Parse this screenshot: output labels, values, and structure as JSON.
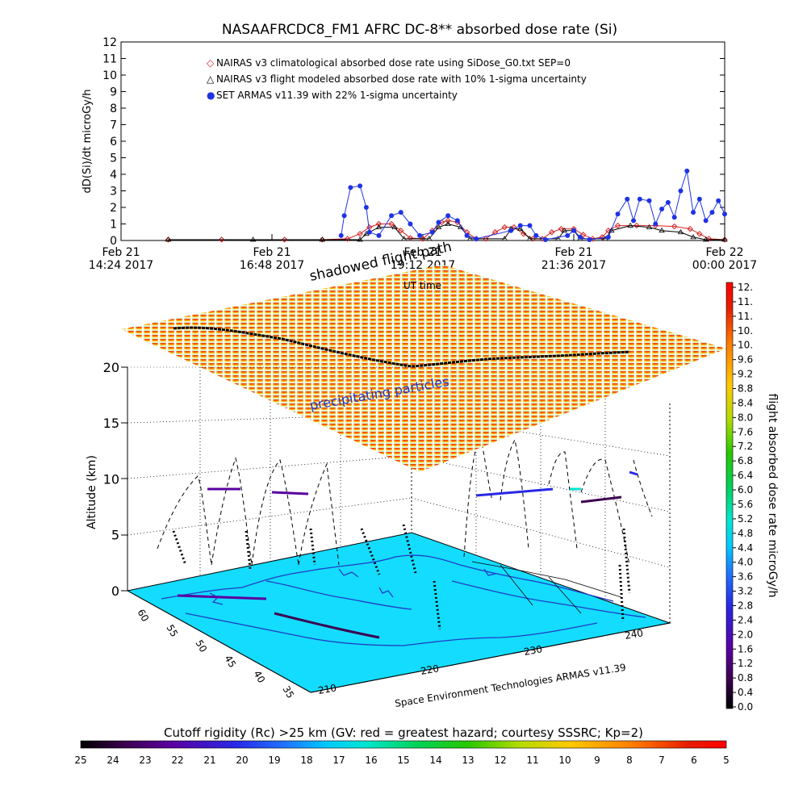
{
  "chart_data": [
    {
      "type": "line",
      "title": "NASAAFRCDC8_FM1 AFRC DC-8** absorbed dose rate (Si)",
      "ylabel": "dD(Si)/dt microGy/h",
      "xlabel": "UT time",
      "ylim": [
        0,
        12
      ],
      "y_ticks": [
        "0",
        "1",
        "2",
        "3",
        "4",
        "5",
        "6",
        "7",
        "8",
        "9",
        "10",
        "11",
        "12"
      ],
      "x_ticks": [
        {
          "line1": "Feb 21",
          "line2": "14:24 2017",
          "hour": 14.4
        },
        {
          "line1": "Feb 21",
          "line2": "16:48 2017",
          "hour": 16.8
        },
        {
          "line1": "Feb 21",
          "line2": "19:12 2017",
          "hour": 19.2
        },
        {
          "line1": "Feb 21",
          "line2": "21:36 2017",
          "hour": 21.6
        },
        {
          "line1": "Feb 22",
          "line2": "00:00 2017",
          "hour": 24.0
        }
      ],
      "x_range_hours": [
        14.4,
        24.0
      ],
      "legend": [
        {
          "symbol": "◇",
          "color": "#d42020",
          "label": "NAIRAS v3 climatological absorbed dose rate using SiDose_G0.txt SEP=0"
        },
        {
          "symbol": "△",
          "color": "#000000",
          "label": "NAIRAS v3 flight modeled absorbed dose rate with 10% 1-sigma uncertainty"
        },
        {
          "symbol": "●",
          "color": "#1e32e6",
          "label": "SET ARMAS v11.39 with 22% 1-sigma uncertainty"
        }
      ],
      "series": [
        {
          "name": "NAIRAS v3 climatological absorbed dose rate using SiDose_G0.txt SEP=0",
          "color": "#d42020",
          "points": [
            [
              15.15,
              0.05
            ],
            [
              16.0,
              0.05
            ],
            [
              17.0,
              0.05
            ],
            [
              17.6,
              0.05
            ],
            [
              18.0,
              0.1
            ],
            [
              18.2,
              0.4
            ],
            [
              18.35,
              0.8
            ],
            [
              18.5,
              1.0
            ],
            [
              18.7,
              1.0
            ],
            [
              18.85,
              0.6
            ],
            [
              19.0,
              0.15
            ],
            [
              19.2,
              0.1
            ],
            [
              19.35,
              0.6
            ],
            [
              19.5,
              1.1
            ],
            [
              19.6,
              1.2
            ],
            [
              19.75,
              1.1
            ],
            [
              19.9,
              0.5
            ],
            [
              20.05,
              0.1
            ],
            [
              20.2,
              0.1
            ],
            [
              20.35,
              0.5
            ],
            [
              20.5,
              0.8
            ],
            [
              20.65,
              0.8
            ],
            [
              20.8,
              0.4
            ],
            [
              20.95,
              0.1
            ],
            [
              21.1,
              0.1
            ],
            [
              21.25,
              0.5
            ],
            [
              21.4,
              0.7
            ],
            [
              21.6,
              0.7
            ],
            [
              21.75,
              0.35
            ],
            [
              21.9,
              0.1
            ],
            [
              22.05,
              0.2
            ],
            [
              22.15,
              0.6
            ],
            [
              22.3,
              0.9
            ],
            [
              22.6,
              0.9
            ],
            [
              22.9,
              0.9
            ],
            [
              23.2,
              0.85
            ],
            [
              23.45,
              0.7
            ],
            [
              23.6,
              0.4
            ],
            [
              23.75,
              0.1
            ],
            [
              24.0,
              0.05
            ]
          ]
        },
        {
          "name": "NAIRAS v3 flight modeled absorbed dose rate with 10% 1-sigma uncertainty",
          "color": "#000000",
          "points": [
            [
              15.15,
              0.05
            ],
            [
              16.5,
              0.05
            ],
            [
              17.6,
              0.05
            ],
            [
              18.2,
              0.05
            ],
            [
              18.3,
              0.4
            ],
            [
              18.5,
              0.8
            ],
            [
              18.75,
              0.8
            ],
            [
              18.9,
              0.1
            ],
            [
              19.3,
              0.1
            ],
            [
              19.45,
              0.8
            ],
            [
              19.6,
              1.0
            ],
            [
              19.8,
              0.8
            ],
            [
              19.95,
              0.1
            ],
            [
              20.5,
              0.1
            ],
            [
              20.6,
              0.7
            ],
            [
              20.75,
              0.7
            ],
            [
              20.9,
              0.1
            ],
            [
              21.35,
              0.1
            ],
            [
              21.45,
              0.6
            ],
            [
              21.6,
              0.6
            ],
            [
              21.7,
              0.1
            ],
            [
              22.1,
              0.1
            ],
            [
              22.2,
              0.6
            ],
            [
              22.5,
              0.9
            ],
            [
              22.8,
              0.8
            ],
            [
              23.0,
              0.6
            ],
            [
              23.3,
              0.5
            ],
            [
              23.5,
              0.2
            ],
            [
              23.7,
              0.05
            ],
            [
              24.0,
              0.05
            ]
          ]
        },
        {
          "name": "SET ARMAS v11.39 with 22% 1-sigma uncertainty",
          "color": "#1e32e6",
          "points": [
            [
              17.9,
              0.3
            ],
            [
              17.95,
              1.5
            ],
            [
              18.05,
              3.2
            ],
            [
              18.2,
              3.3
            ],
            [
              18.3,
              2.0
            ],
            [
              18.35,
              0.5
            ],
            [
              18.5,
              0.3
            ],
            [
              18.7,
              1.5
            ],
            [
              18.85,
              1.7
            ],
            [
              19.0,
              1.0
            ],
            [
              19.15,
              0.3
            ],
            [
              19.35,
              0.5
            ],
            [
              19.45,
              1.1
            ],
            [
              19.6,
              1.5
            ],
            [
              19.75,
              1.2
            ],
            [
              19.9,
              0.3
            ],
            [
              20.05,
              0.1
            ],
            [
              20.6,
              0.6
            ],
            [
              20.75,
              0.9
            ],
            [
              20.9,
              0.9
            ],
            [
              21.0,
              0.3
            ],
            [
              21.15,
              0.05
            ],
            [
              21.5,
              0.3
            ],
            [
              21.6,
              0.6
            ],
            [
              21.7,
              0.2
            ],
            [
              21.85,
              0.05
            ],
            [
              22.15,
              0.2
            ],
            [
              22.3,
              1.6
            ],
            [
              22.45,
              2.5
            ],
            [
              22.55,
              1.2
            ],
            [
              22.65,
              2.5
            ],
            [
              22.8,
              2.4
            ],
            [
              22.9,
              1.0
            ],
            [
              23.0,
              1.9
            ],
            [
              23.1,
              2.3
            ],
            [
              23.2,
              1.4
            ],
            [
              23.3,
              3.0
            ],
            [
              23.4,
              4.2
            ],
            [
              23.5,
              1.7
            ],
            [
              23.6,
              2.5
            ],
            [
              23.7,
              1.2
            ],
            [
              23.8,
              1.7
            ],
            [
              23.9,
              2.4
            ],
            [
              24.0,
              1.6
            ]
          ]
        }
      ]
    },
    {
      "type": "3d-trajectory",
      "zlabel": "Altitude (km)",
      "z_ticks": [
        "0",
        "5",
        "10",
        "15",
        "20"
      ],
      "latitude_ticks": [
        "60",
        "55",
        "50",
        "45",
        "40",
        "35"
      ],
      "longitude_ticks": [
        "210",
        "220",
        "230",
        "240"
      ],
      "annotations": [
        "shadowed flight path",
        "precipitating particles",
        "UT time"
      ],
      "credit": "Space Environment Technologies ARMAS v11.39",
      "sheet_altitude_km": 20
    },
    {
      "type": "colorbar",
      "orientation": "vertical",
      "label": "flight absorbed dose rate microGy/h",
      "ticks": [
        "12.",
        "11.",
        "11.",
        "10.",
        "10.",
        "9.6",
        "9.2",
        "8.8",
        "8.4",
        "8.0",
        "7.6",
        "7.2",
        "6.8",
        "6.4",
        "6.0",
        "5.6",
        "5.2",
        "4.8",
        "4.4",
        "4.0",
        "3.6",
        "3.2",
        "2.8",
        "2.4",
        "2.0",
        "1.6",
        "1.2",
        "0.8",
        "0.4",
        "0.0"
      ]
    },
    {
      "type": "colorbar",
      "orientation": "horizontal",
      "label": "Cutoff rigidity (Rc) >25 km (GV: red = greatest hazard; courtesy SSSRC; Kp=2)",
      "ticks": [
        "25",
        "24",
        "23",
        "22",
        "21",
        "20",
        "19",
        "18",
        "17",
        "16",
        "15",
        "14",
        "13",
        "12",
        "11",
        "10",
        "9",
        "8",
        "7",
        "6",
        "5"
      ]
    }
  ],
  "colors": {
    "colormap": [
      "#000000",
      "#3c0050",
      "#5a00a0",
      "#2828e6",
      "#1e78ff",
      "#00c8ff",
      "#00e6d2",
      "#00d25a",
      "#28c800",
      "#b4dc00",
      "#ffc800",
      "#ff7800",
      "#e61e00",
      "#ff0000"
    ]
  }
}
